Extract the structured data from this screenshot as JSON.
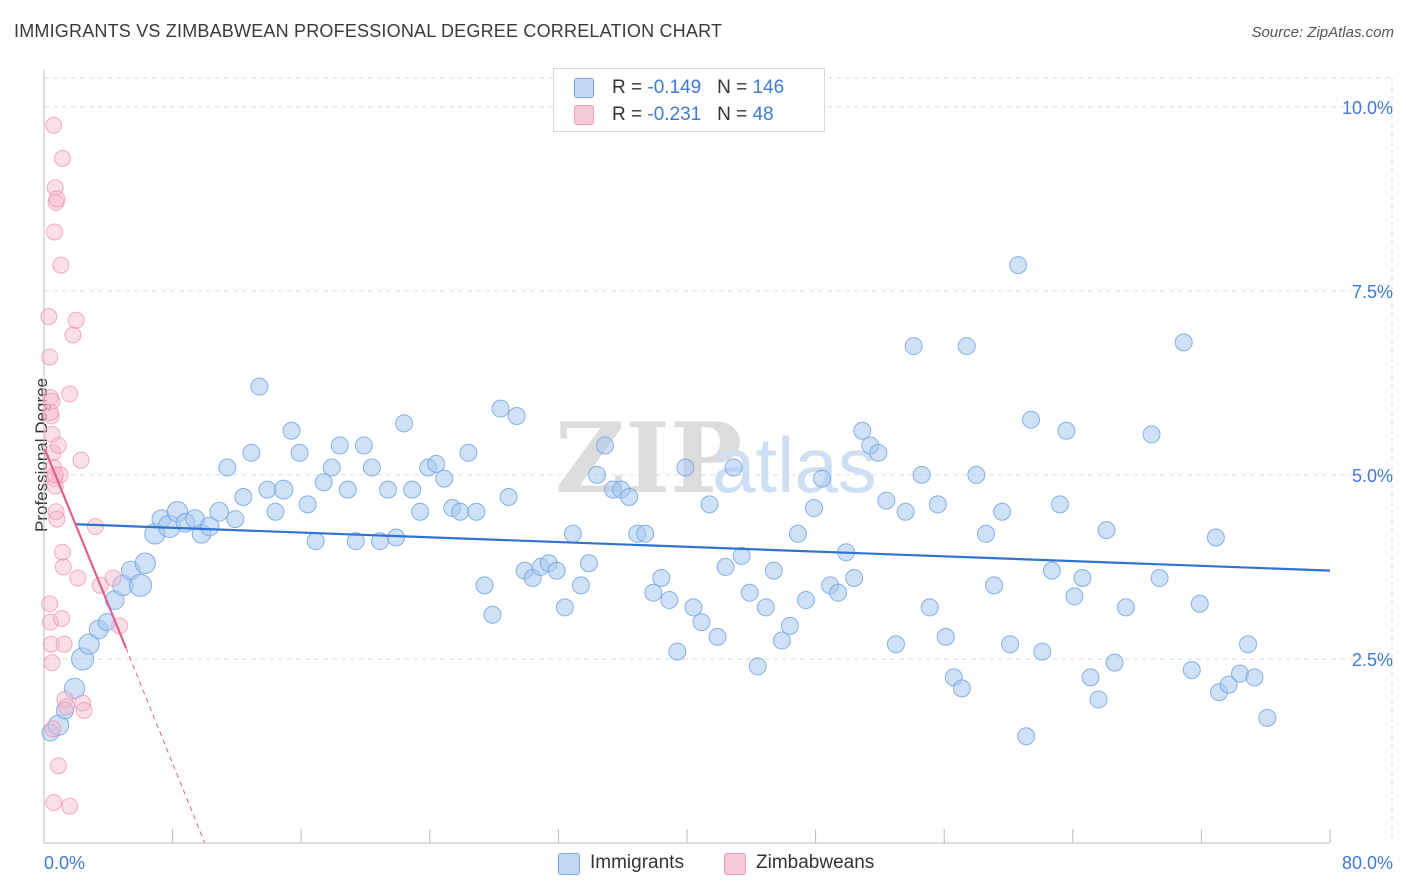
{
  "title": "IMMIGRANTS VS ZIMBABWEAN PROFESSIONAL DEGREE CORRELATION CHART",
  "source": "Source: ZipAtlas.com",
  "watermark": {
    "zip": "ZIP",
    "atlas": "atlas"
  },
  "legend": {
    "immigrants": {
      "r_label": "R = ",
      "r_value": "-0.149",
      "n_label": "N = ",
      "n_value": "146"
    },
    "zimbabweans": {
      "r_label": "R = ",
      "r_value": "-0.231",
      "n_label": "N = ",
      "n_value": "48"
    }
  },
  "bottom_legend": {
    "immigrants": "Immigrants",
    "zimbabweans": "Zimbabweans"
  },
  "colors": {
    "immigrants": "#a8c8f0",
    "immigrants_stroke": "#6fa0e0",
    "immigrants_line": "#2f72d0",
    "zimbabweans": "#f6b8cc",
    "zimbabweans_stroke": "#ec8fb0",
    "zimbabweans_line": "#e0608c",
    "grid": "#dddddd",
    "axis_text": "#3f7ad6"
  },
  "chart_data": {
    "type": "scatter",
    "title": "IMMIGRANTS VS ZIMBABWEAN PROFESSIONAL DEGREE CORRELATION CHART",
    "xlabel": "",
    "ylabel": "Professional Degree",
    "xlim": [
      0,
      80
    ],
    "ylim": [
      0,
      10.5
    ],
    "x_tick_labels": [
      "0.0%",
      "80.0%"
    ],
    "y_ticks": [
      2.5,
      5.0,
      7.5,
      10.0
    ],
    "y_tick_labels": [
      "2.5%",
      "5.0%",
      "7.5%",
      "10.0%"
    ],
    "grid": true,
    "series": [
      {
        "name": "Immigrants",
        "r": -0.149,
        "n": 146,
        "trend": {
          "x": [
            0,
            80
          ],
          "y": [
            4.33,
            3.7
          ]
        },
        "points": [
          [
            0.4,
            1.5,
            1
          ],
          [
            0.9,
            1.6,
            1.2
          ],
          [
            1.3,
            1.8,
            1
          ],
          [
            1.9,
            2.1,
            1.2
          ],
          [
            2.4,
            2.5,
            1.3
          ],
          [
            2.8,
            2.7,
            1.2
          ],
          [
            3.4,
            2.9,
            1.1
          ],
          [
            3.9,
            3.0,
            1
          ],
          [
            4.4,
            3.3,
            1.1
          ],
          [
            4.9,
            3.5,
            1.2
          ],
          [
            5.4,
            3.7,
            1.1
          ],
          [
            6.0,
            3.5,
            1.3
          ],
          [
            6.3,
            3.8,
            1.2
          ],
          [
            6.9,
            4.2,
            1.2
          ],
          [
            7.3,
            4.4,
            1.1
          ],
          [
            7.8,
            4.3,
            1.3
          ],
          [
            8.3,
            4.5,
            1.2
          ],
          [
            8.8,
            4.35,
            1.1
          ],
          [
            9.4,
            4.4,
            1.1
          ],
          [
            9.8,
            4.2,
            1.1
          ],
          [
            10.3,
            4.3,
            1.1
          ],
          [
            10.9,
            4.5,
            1.1
          ],
          [
            11.4,
            5.1,
            1
          ],
          [
            11.9,
            4.4,
            1
          ],
          [
            12.4,
            4.7,
            1
          ],
          [
            12.9,
            5.3,
            1
          ],
          [
            13.4,
            6.2,
            1
          ],
          [
            13.9,
            4.8,
            1
          ],
          [
            14.4,
            4.5,
            1
          ],
          [
            14.9,
            4.8,
            1.1
          ],
          [
            15.4,
            5.6,
            1
          ],
          [
            15.9,
            5.3,
            1
          ],
          [
            16.4,
            4.6,
            1
          ],
          [
            16.9,
            4.1,
            1
          ],
          [
            17.4,
            4.9,
            1
          ],
          [
            17.9,
            5.1,
            1
          ],
          [
            18.4,
            5.4,
            1
          ],
          [
            18.9,
            4.8,
            1
          ],
          [
            19.4,
            4.1,
            1
          ],
          [
            19.9,
            5.4,
            1
          ],
          [
            20.4,
            5.1,
            1
          ],
          [
            20.9,
            4.1,
            1
          ],
          [
            21.4,
            4.8,
            1
          ],
          [
            21.9,
            4.15,
            1
          ],
          [
            22.4,
            5.7,
            1
          ],
          [
            22.9,
            4.8,
            1
          ],
          [
            23.4,
            4.5,
            1
          ],
          [
            23.9,
            5.1,
            1
          ],
          [
            24.4,
            5.15,
            1
          ],
          [
            24.9,
            4.95,
            1
          ],
          [
            25.4,
            4.55,
            1
          ],
          [
            25.9,
            4.5,
            1
          ],
          [
            26.4,
            5.3,
            1
          ],
          [
            26.9,
            4.5,
            1
          ],
          [
            27.4,
            3.5,
            1
          ],
          [
            27.9,
            3.1,
            1
          ],
          [
            28.4,
            5.9,
            1
          ],
          [
            28.9,
            4.7,
            1
          ],
          [
            29.4,
            5.8,
            1
          ],
          [
            29.9,
            3.7,
            1
          ],
          [
            30.4,
            3.6,
            1
          ],
          [
            30.9,
            3.75,
            1
          ],
          [
            31.4,
            3.8,
            1
          ],
          [
            31.9,
            3.7,
            1
          ],
          [
            32.4,
            3.2,
            1
          ],
          [
            32.9,
            4.2,
            1
          ],
          [
            33.4,
            3.5,
            1
          ],
          [
            33.9,
            3.8,
            1
          ],
          [
            34.4,
            5.0,
            1
          ],
          [
            34.9,
            5.4,
            1
          ],
          [
            35.4,
            4.8,
            1
          ],
          [
            35.9,
            4.8,
            1
          ],
          [
            36.4,
            4.7,
            1
          ],
          [
            36.9,
            4.2,
            1
          ],
          [
            37.4,
            4.2,
            1
          ],
          [
            37.9,
            3.4,
            1
          ],
          [
            38.4,
            3.6,
            1
          ],
          [
            38.9,
            3.3,
            1
          ],
          [
            39.4,
            2.6,
            1
          ],
          [
            39.9,
            5.1,
            1
          ],
          [
            40.4,
            3.2,
            1
          ],
          [
            40.9,
            3.0,
            1
          ],
          [
            41.4,
            4.6,
            1
          ],
          [
            41.9,
            2.8,
            1
          ],
          [
            42.4,
            3.75,
            1
          ],
          [
            42.9,
            5.1,
            1
          ],
          [
            43.4,
            3.9,
            1
          ],
          [
            43.9,
            3.4,
            1
          ],
          [
            44.4,
            2.4,
            1
          ],
          [
            44.9,
            3.2,
            1
          ],
          [
            45.4,
            3.7,
            1
          ],
          [
            45.9,
            2.75,
            1
          ],
          [
            46.4,
            2.95,
            1
          ],
          [
            46.9,
            4.2,
            1
          ],
          [
            47.4,
            3.3,
            1
          ],
          [
            47.9,
            4.55,
            1
          ],
          [
            48.4,
            4.95,
            1
          ],
          [
            48.9,
            3.5,
            1
          ],
          [
            49.4,
            3.4,
            1
          ],
          [
            49.9,
            3.95,
            1
          ],
          [
            50.4,
            3.6,
            1
          ],
          [
            50.9,
            5.6,
            1
          ],
          [
            51.4,
            5.4,
            1
          ],
          [
            51.9,
            5.3,
            1
          ],
          [
            52.4,
            4.65,
            1
          ],
          [
            53.0,
            2.7,
            1
          ],
          [
            53.6,
            4.5,
            1
          ],
          [
            54.1,
            6.75,
            1
          ],
          [
            54.6,
            5.0,
            1
          ],
          [
            55.1,
            3.2,
            1
          ],
          [
            55.6,
            4.6,
            1
          ],
          [
            56.1,
            2.8,
            1
          ],
          [
            56.6,
            2.25,
            1
          ],
          [
            57.1,
            2.1,
            1
          ],
          [
            57.4,
            6.75,
            1
          ],
          [
            58.0,
            5.0,
            1
          ],
          [
            58.6,
            4.2,
            1
          ],
          [
            59.1,
            3.5,
            1
          ],
          [
            59.6,
            4.5,
            1
          ],
          [
            60.1,
            2.7,
            1
          ],
          [
            60.6,
            7.85,
            1
          ],
          [
            61.1,
            1.45,
            1
          ],
          [
            61.4,
            5.75,
            1
          ],
          [
            62.1,
            2.6,
            1
          ],
          [
            62.7,
            3.7,
            1
          ],
          [
            63.2,
            4.6,
            1
          ],
          [
            63.6,
            5.6,
            1
          ],
          [
            64.1,
            3.35,
            1
          ],
          [
            64.6,
            3.6,
            1
          ],
          [
            65.1,
            2.25,
            1
          ],
          [
            65.6,
            1.95,
            1
          ],
          [
            66.1,
            4.25,
            1
          ],
          [
            66.6,
            2.45,
            1
          ],
          [
            67.3,
            3.2,
            1
          ],
          [
            68.9,
            5.55,
            1
          ],
          [
            69.4,
            3.6,
            1
          ],
          [
            70.9,
            6.8,
            1
          ],
          [
            71.4,
            2.35,
            1
          ],
          [
            71.9,
            3.25,
            1
          ],
          [
            72.9,
            4.15,
            1
          ],
          [
            73.1,
            2.05,
            1
          ],
          [
            73.7,
            2.15,
            1
          ],
          [
            74.4,
            2.3,
            1
          ],
          [
            74.9,
            2.7,
            1
          ],
          [
            75.3,
            2.25,
            1
          ],
          [
            76.1,
            1.7,
            1
          ]
        ]
      },
      {
        "name": "Zimbabweans",
        "r": -0.231,
        "n": 48,
        "trend": {
          "x": [
            0.05,
            5.1
          ],
          "y": [
            5.35,
            2.65
          ]
        },
        "trend_dashed": {
          "x": [
            5.1,
            10.0
          ],
          "y": [
            2.65,
            0
          ]
        },
        "points": [
          [
            0.3,
            7.15,
            1
          ],
          [
            0.35,
            6.6,
            1
          ],
          [
            0.4,
            6.05,
            1
          ],
          [
            0.45,
            5.8,
            1
          ],
          [
            0.5,
            5.55,
            1
          ],
          [
            0.55,
            5.3,
            1
          ],
          [
            0.6,
            5.1,
            1
          ],
          [
            0.65,
            4.95,
            1
          ],
          [
            0.7,
            4.85,
            1
          ],
          [
            0.75,
            4.5,
            1
          ],
          [
            0.8,
            4.4,
            1
          ],
          [
            0.35,
            3.25,
            1
          ],
          [
            0.4,
            3.0,
            1
          ],
          [
            0.45,
            2.7,
            1
          ],
          [
            0.5,
            2.45,
            1
          ],
          [
            0.55,
            1.55,
            1
          ],
          [
            0.6,
            9.75,
            1
          ],
          [
            0.65,
            8.3,
            1
          ],
          [
            0.7,
            8.9,
            1
          ],
          [
            0.75,
            8.7,
            1
          ],
          [
            0.8,
            8.75,
            1
          ],
          [
            0.9,
            5.4,
            1
          ],
          [
            1.0,
            5.0,
            1
          ],
          [
            1.1,
            3.05,
            1
          ],
          [
            1.15,
            3.95,
            1
          ],
          [
            1.2,
            3.75,
            1
          ],
          [
            1.25,
            2.7,
            1
          ],
          [
            1.05,
            7.85,
            1
          ],
          [
            1.15,
            9.3,
            1
          ],
          [
            1.3,
            1.95,
            1
          ],
          [
            1.4,
            1.85,
            1
          ],
          [
            1.6,
            6.1,
            1
          ],
          [
            1.8,
            6.9,
            1
          ],
          [
            2.0,
            7.1,
            1
          ],
          [
            2.1,
            3.6,
            1
          ],
          [
            2.3,
            5.2,
            1
          ],
          [
            2.4,
            1.9,
            1
          ],
          [
            2.5,
            1.8,
            1
          ],
          [
            3.2,
            4.3,
            1
          ],
          [
            3.5,
            3.5,
            1
          ],
          [
            4.3,
            3.6,
            1
          ],
          [
            4.7,
            2.95,
            1
          ],
          [
            0.6,
            0.55,
            1
          ],
          [
            1.6,
            0.5,
            1
          ],
          [
            0.9,
            1.05,
            1
          ],
          [
            0.5,
            6.0,
            1
          ],
          [
            0.7,
            5.0,
            1
          ],
          [
            0.4,
            5.85,
            1
          ]
        ]
      }
    ]
  }
}
